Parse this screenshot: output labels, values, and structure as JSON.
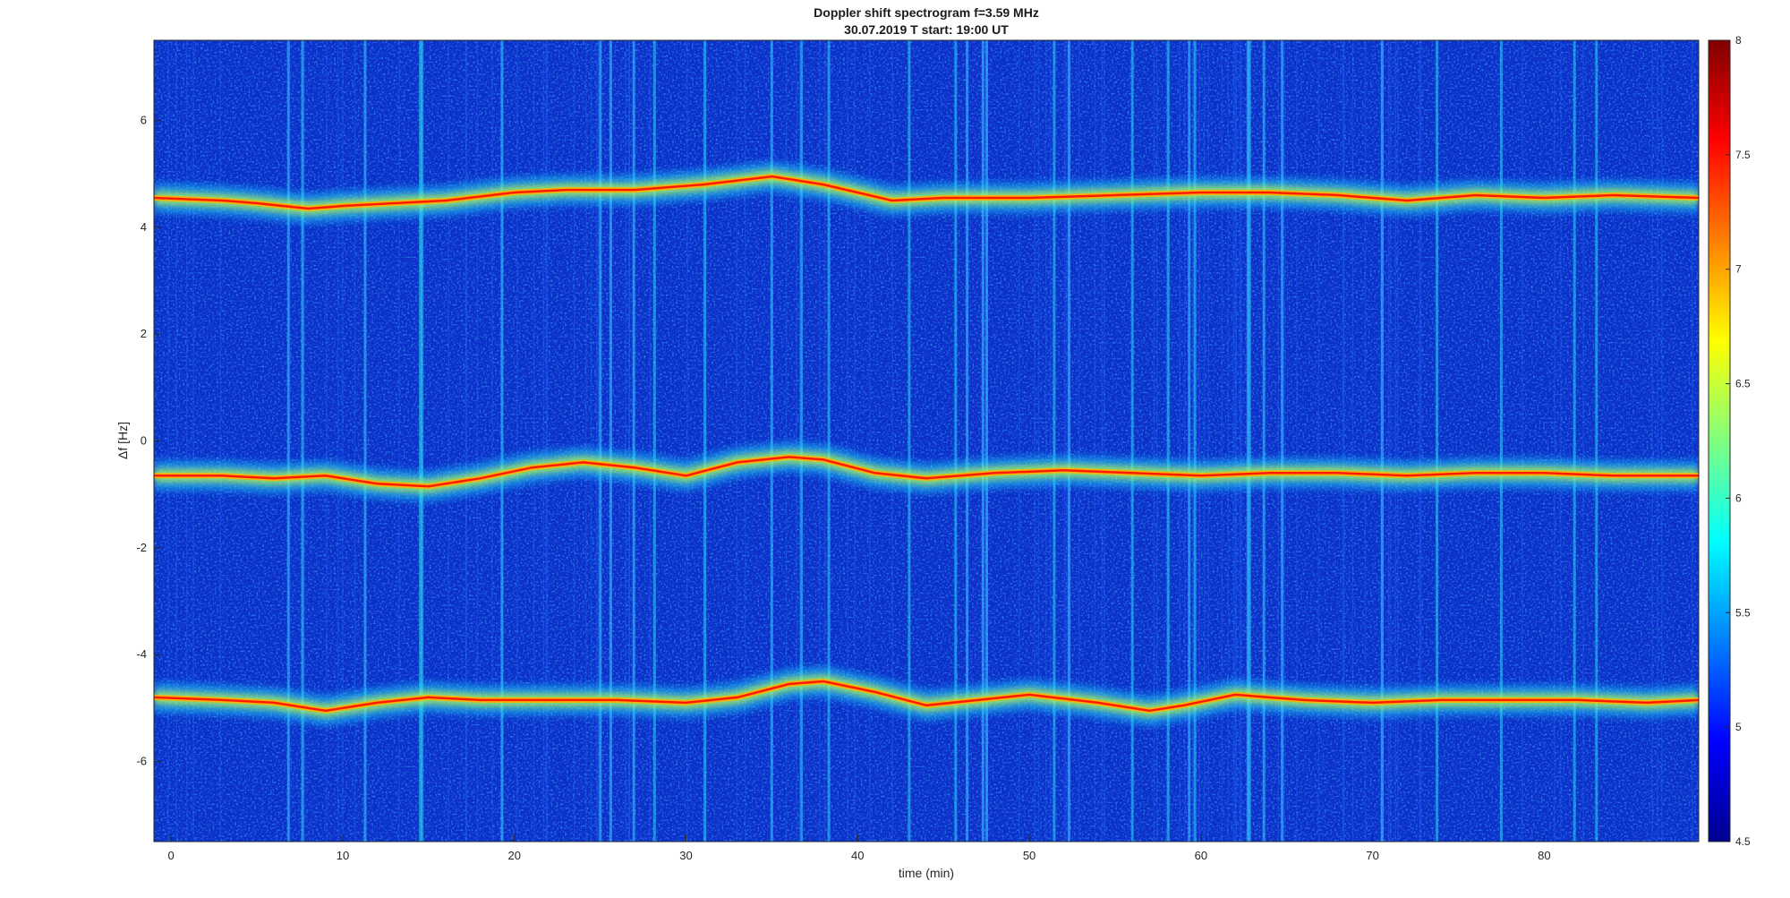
{
  "chart_data": {
    "type": "heatmap",
    "title": "Doppler shift spectrogram f=3.59 MHz",
    "subtitle": "30.07.2019   T start: 19:00 UT",
    "xlabel": "time (min)",
    "ylabel": "Δf [Hz]",
    "xlim": [
      -1,
      89
    ],
    "ylim": [
      -7.5,
      7.5
    ],
    "x_ticks": [
      "0",
      "10",
      "20",
      "30",
      "40",
      "50",
      "60",
      "70",
      "80"
    ],
    "y_ticks": [
      "-6",
      "-4",
      "-2",
      "0",
      "2",
      "4",
      "6"
    ],
    "colorbar": {
      "colormap": "jet",
      "range": [
        4.5,
        8
      ],
      "ticks": [
        "4.5",
        "5",
        "5.5",
        "6",
        "6.5",
        "7",
        "7.5",
        "8"
      ]
    },
    "series": [
      {
        "x": [
          -1,
          3,
          5,
          8,
          10,
          13,
          16,
          20,
          23,
          27,
          31,
          35,
          38,
          42,
          45,
          50,
          55,
          60,
          64,
          68,
          72,
          76,
          80,
          84,
          89
        ],
        "y": [
          4.55,
          4.5,
          4.45,
          4.35,
          4.4,
          4.45,
          4.5,
          4.65,
          4.7,
          4.7,
          4.8,
          4.95,
          4.8,
          4.5,
          4.55,
          4.55,
          4.6,
          4.65,
          4.65,
          4.6,
          4.5,
          4.6,
          4.55,
          4.6,
          4.55
        ]
      },
      {
        "x": [
          -1,
          3,
          6,
          9,
          12,
          15,
          18,
          21,
          24,
          27,
          30,
          33,
          36,
          38,
          41,
          44,
          48,
          52,
          56,
          60,
          64,
          68,
          72,
          76,
          80,
          84,
          89
        ],
        "y": [
          -0.65,
          -0.65,
          -0.7,
          -0.65,
          -0.8,
          -0.85,
          -0.7,
          -0.5,
          -0.4,
          -0.5,
          -0.65,
          -0.4,
          -0.3,
          -0.35,
          -0.6,
          -0.7,
          -0.6,
          -0.55,
          -0.6,
          -0.65,
          -0.6,
          -0.6,
          -0.65,
          -0.6,
          -0.6,
          -0.65,
          -0.65
        ]
      },
      {
        "x": [
          -1,
          3,
          6,
          9,
          12,
          15,
          18,
          22,
          26,
          30,
          33,
          36,
          38,
          41,
          44,
          47,
          50,
          54,
          57,
          59,
          62,
          66,
          70,
          74,
          78,
          82,
          86,
          89
        ],
        "y": [
          -4.8,
          -4.85,
          -4.9,
          -5.05,
          -4.9,
          -4.8,
          -4.85,
          -4.85,
          -4.85,
          -4.9,
          -4.8,
          -4.55,
          -4.5,
          -4.7,
          -4.95,
          -4.85,
          -4.75,
          -4.9,
          -5.05,
          -4.95,
          -4.75,
          -4.85,
          -4.9,
          -4.85,
          -4.85,
          -4.85,
          -4.9,
          -4.85
        ]
      }
    ],
    "grid": false,
    "legend": "none"
  }
}
